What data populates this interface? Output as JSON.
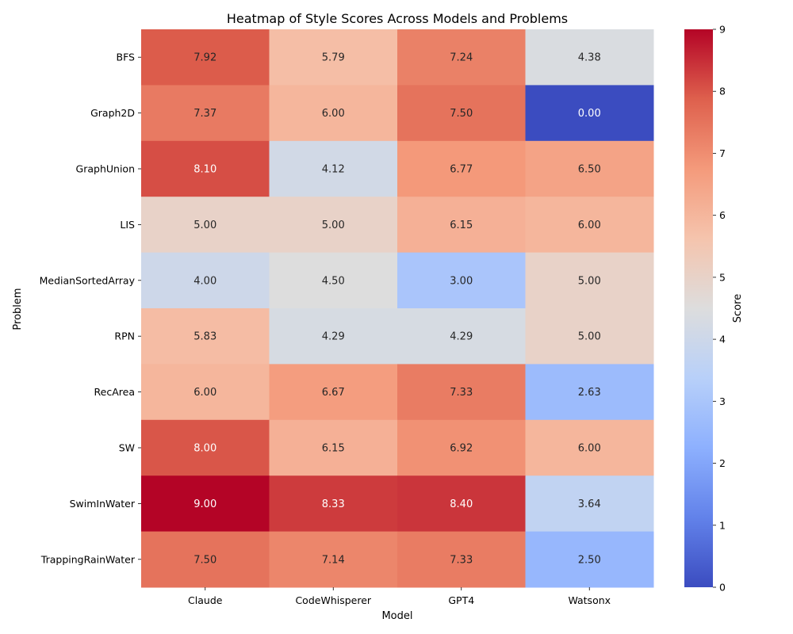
{
  "chart_data": {
    "type": "heatmap",
    "title": "Heatmap of Style Scores Across Models and Problems",
    "xlabel": "Model",
    "ylabel": "Problem",
    "x_categories": [
      "Claude",
      "CodeWhisperer",
      "GPT4",
      "Watsonx"
    ],
    "y_categories": [
      "BFS",
      "Graph2D",
      "GraphUnion",
      "LIS",
      "MedianSortedArray",
      "RPN",
      "RecArea",
      "SW",
      "SwimInWater",
      "TrappingRainWater"
    ],
    "values": [
      [
        7.92,
        5.79,
        7.24,
        4.38
      ],
      [
        7.37,
        6.0,
        7.5,
        0.0
      ],
      [
        8.1,
        4.12,
        6.77,
        6.5
      ],
      [
        5.0,
        5.0,
        6.15,
        6.0
      ],
      [
        4.0,
        4.5,
        3.0,
        5.0
      ],
      [
        5.83,
        4.29,
        4.29,
        5.0
      ],
      [
        6.0,
        6.67,
        7.33,
        2.63
      ],
      [
        8.0,
        6.15,
        6.92,
        6.0
      ],
      [
        9.0,
        8.33,
        8.4,
        3.64
      ],
      [
        7.5,
        7.14,
        7.33,
        2.5
      ]
    ],
    "value_format_decimals": 2,
    "colormap": "coolwarm",
    "vmin": 0,
    "vmax": 9,
    "colorbar": {
      "label": "Score",
      "ticks": [
        0,
        1,
        2,
        3,
        4,
        5,
        6,
        7,
        8,
        9
      ]
    }
  }
}
